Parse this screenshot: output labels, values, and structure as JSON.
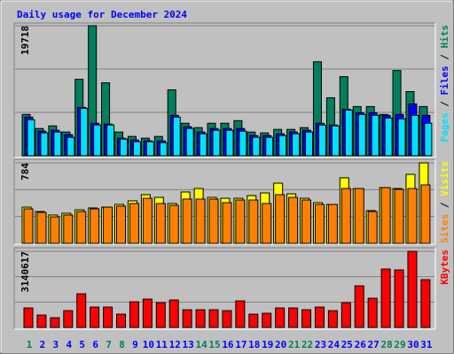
{
  "chart_data": [
    {
      "type": "bar",
      "title": "Daily usage for December 2024",
      "title_color": "#0000ff",
      "ylim": [
        0,
        19718
      ],
      "yticks": [
        19718
      ],
      "grid_divisions": 3,
      "legend_separator": " / ",
      "series": [
        {
          "name": "Hits",
          "color": "#00805c",
          "values": [
            6260,
            4129,
            4529,
            3596,
            11588,
            19718,
            11056,
            3596,
            2930,
            2664,
            2930,
            9990,
            4928,
            4262,
            4928,
            4928,
            5328,
            3596,
            3463,
            3996,
            3996,
            4262,
            14252,
            8791,
            11988,
            7459,
            7459,
            6260,
            12920,
            9724,
            7459
          ]
        },
        {
          "name": "Files",
          "color": "#0000ff",
          "values": [
            5861,
            3730,
            3863,
            3197,
            7326,
            4928,
            4795,
            2664,
            2398,
            2264,
            2264,
            6127,
            4396,
            3596,
            4129,
            4129,
            4129,
            3064,
            3064,
            3330,
            3596,
            3863,
            4928,
            4662,
            7060,
            6527,
            6527,
            6127,
            6260,
            7859,
            6127
          ]
        },
        {
          "name": "Pages",
          "color": "#00e0ff",
          "values": [
            5461,
            3463,
            3596,
            2797,
            7193,
            4662,
            4662,
            2531,
            2131,
            2131,
            1998,
            5861,
            4129,
            3330,
            3863,
            3863,
            3730,
            2797,
            2797,
            3064,
            3330,
            3596,
            4662,
            4529,
            6926,
            6260,
            6127,
            5728,
            5594,
            6127,
            4928
          ]
        }
      ]
    },
    {
      "type": "bar",
      "ylim": [
        0,
        784
      ],
      "yticks": [
        784
      ],
      "grid_divisions": 3,
      "legend_separator": " / ",
      "series": [
        {
          "name": "Visits",
          "color": "#ffff00",
          "values": [
            353,
            310,
            276,
            293,
            327,
            345,
            353,
            379,
            414,
            474,
            448,
            388,
            500,
            534,
            448,
            439,
            439,
            465,
            491,
            586,
            482,
            439,
            396,
            379,
            638,
            534,
            319,
            543,
            534,
            672,
            784
          ]
        },
        {
          "name": "Sites",
          "color": "#ff8000",
          "values": [
            336,
            302,
            258,
            276,
            310,
            336,
            353,
            362,
            388,
            439,
            388,
            370,
            431,
            431,
            431,
            396,
            422,
            422,
            388,
            474,
            448,
            422,
            379,
            379,
            534,
            534,
            310,
            543,
            526,
            534,
            569
          ]
        }
      ]
    },
    {
      "type": "bar",
      "ylim": [
        0,
        3140617
      ],
      "yticks": [
        3140617
      ],
      "grid_divisions": 3,
      "categories": [
        "1",
        "2",
        "3",
        "4",
        "5",
        "6",
        "7",
        "8",
        "9",
        "10",
        "11",
        "12",
        "13",
        "14",
        "15",
        "16",
        "17",
        "18",
        "19",
        "20",
        "21",
        "22",
        "23",
        "24",
        "25",
        "26",
        "27",
        "28",
        "29",
        "30",
        "31"
      ],
      "category_colors": [
        "#00805c",
        "#0000ff",
        "#0000ff",
        "#0000ff",
        "#0000ff",
        "#0000ff",
        "#00805c",
        "#00805c",
        "#0000ff",
        "#0000ff",
        "#0000ff",
        "#0000ff",
        "#0000ff",
        "#00805c",
        "#00805c",
        "#0000ff",
        "#0000ff",
        "#0000ff",
        "#0000ff",
        "#0000ff",
        "#00805c",
        "#00805c",
        "#0000ff",
        "#0000ff",
        "#0000ff",
        "#0000ff",
        "#0000ff",
        "#00805c",
        "#00805c",
        "#0000ff",
        "#0000ff"
      ],
      "series": [
        {
          "name": "KBytes",
          "color": "#ff0000",
          "values": [
            803418,
            511266,
            401709,
            693861,
            1387722,
            839937,
            839937,
            547785,
            1059051,
            1168608,
            1022532,
            1132089,
            730380,
            730380,
            730380,
            693861,
            1095570,
            547785,
            584304,
            803418,
            803418,
            730380,
            839937,
            693861,
            1022532,
            1716393,
            1205127,
            2410254,
            2373735,
            3140617,
            1972026
          ]
        }
      ]
    }
  ]
}
